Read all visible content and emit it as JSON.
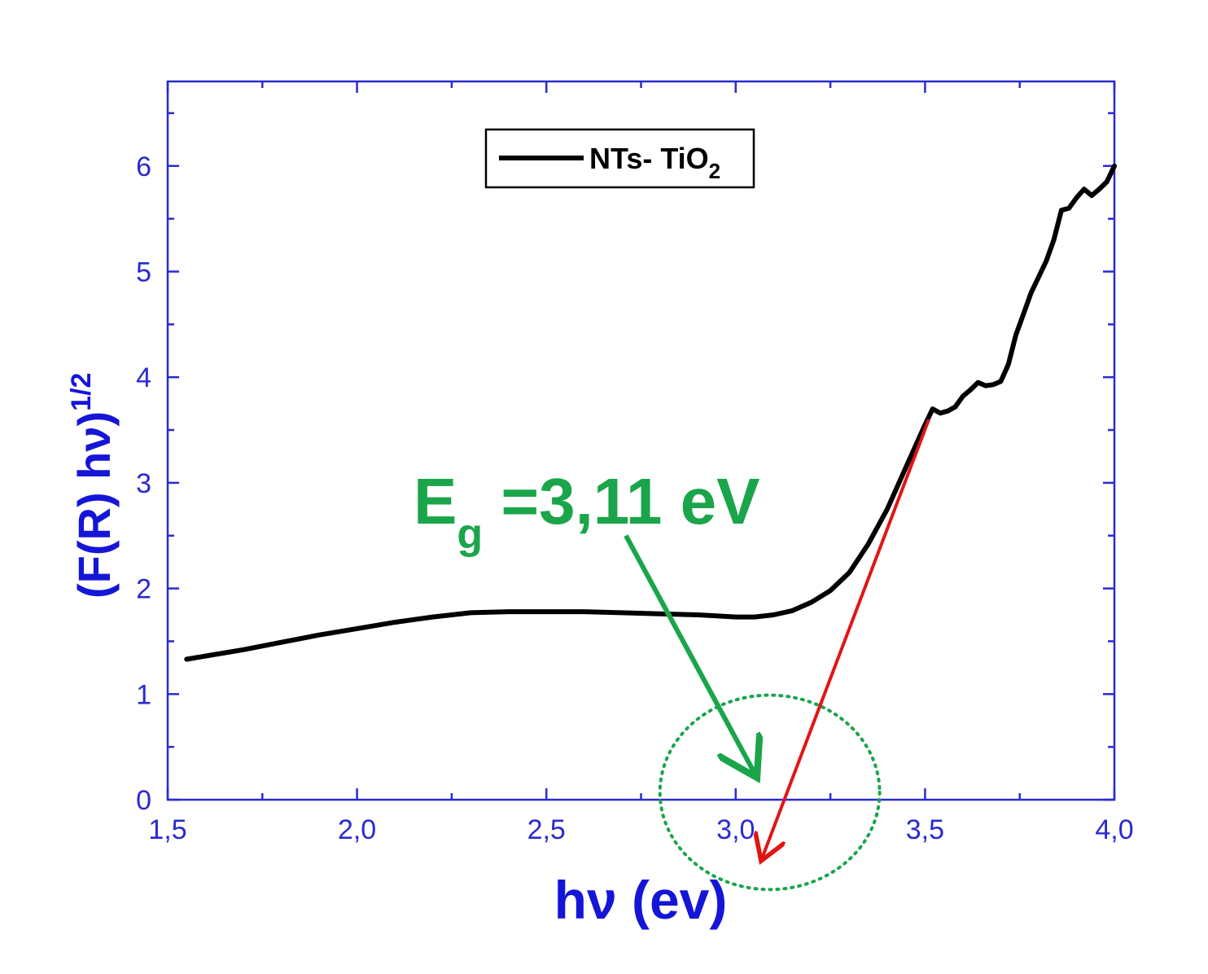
{
  "chart_data": {
    "type": "line",
    "xlabel": "hν (ev)",
    "ylabel_main": "(F(R) hν)",
    "ylabel_sup": "1/2",
    "xlim": [
      1.5,
      4.0
    ],
    "ylim": [
      0,
      6.8
    ],
    "x_ticks": [
      1.5,
      2.0,
      2.5,
      3.0,
      3.5,
      4.0
    ],
    "x_tick_labels": [
      "1,5",
      "2,0",
      "2,5",
      "3,0",
      "3,5",
      "4,0"
    ],
    "y_ticks": [
      0,
      1,
      2,
      3,
      4,
      5,
      6
    ],
    "y_tick_labels": [
      "0",
      "1",
      "2",
      "3",
      "4",
      "5",
      "6"
    ],
    "grid": false,
    "legend_position": "top-center",
    "series": [
      {
        "name": "NTs- TiO",
        "name_sub": "2",
        "color": "#000000",
        "points": [
          [
            1.55,
            1.33
          ],
          [
            1.6,
            1.36
          ],
          [
            1.7,
            1.42
          ],
          [
            1.8,
            1.49
          ],
          [
            1.9,
            1.56
          ],
          [
            2.0,
            1.62
          ],
          [
            2.1,
            1.68
          ],
          [
            2.2,
            1.73
          ],
          [
            2.3,
            1.77
          ],
          [
            2.4,
            1.78
          ],
          [
            2.5,
            1.78
          ],
          [
            2.6,
            1.78
          ],
          [
            2.7,
            1.77
          ],
          [
            2.8,
            1.76
          ],
          [
            2.9,
            1.75
          ],
          [
            2.95,
            1.74
          ],
          [
            3.0,
            1.73
          ],
          [
            3.05,
            1.73
          ],
          [
            3.1,
            1.75
          ],
          [
            3.15,
            1.79
          ],
          [
            3.2,
            1.87
          ],
          [
            3.25,
            1.98
          ],
          [
            3.3,
            2.15
          ],
          [
            3.35,
            2.42
          ],
          [
            3.4,
            2.75
          ],
          [
            3.45,
            3.15
          ],
          [
            3.5,
            3.55
          ],
          [
            3.52,
            3.7
          ],
          [
            3.54,
            3.66
          ],
          [
            3.56,
            3.68
          ],
          [
            3.58,
            3.72
          ],
          [
            3.6,
            3.82
          ],
          [
            3.62,
            3.88
          ],
          [
            3.64,
            3.95
          ],
          [
            3.66,
            3.92
          ],
          [
            3.68,
            3.93
          ],
          [
            3.7,
            3.96
          ],
          [
            3.72,
            4.12
          ],
          [
            3.74,
            4.4
          ],
          [
            3.76,
            4.6
          ],
          [
            3.78,
            4.8
          ],
          [
            3.8,
            4.95
          ],
          [
            3.82,
            5.1
          ],
          [
            3.84,
            5.3
          ],
          [
            3.86,
            5.58
          ],
          [
            3.88,
            5.6
          ],
          [
            3.9,
            5.7
          ],
          [
            3.92,
            5.78
          ],
          [
            3.94,
            5.72
          ],
          [
            3.96,
            5.78
          ],
          [
            3.98,
            5.85
          ],
          [
            4.0,
            6.0
          ]
        ]
      }
    ],
    "tangent_line": {
      "color": "#e31414",
      "from": [
        3.51,
        3.6
      ],
      "to": [
        3.07,
        -0.55
      ]
    },
    "annotation": {
      "text_main": "E",
      "text_sub": "g",
      "text_rest": " =3,11 eV",
      "color": "#1aa54a",
      "arrow_from": [
        2.71,
        2.5
      ],
      "arrow_to": [
        3.05,
        0.25
      ],
      "circle_center": [
        3.09,
        0.07
      ],
      "circle_radius": [
        0.29,
        0.92
      ]
    }
  }
}
